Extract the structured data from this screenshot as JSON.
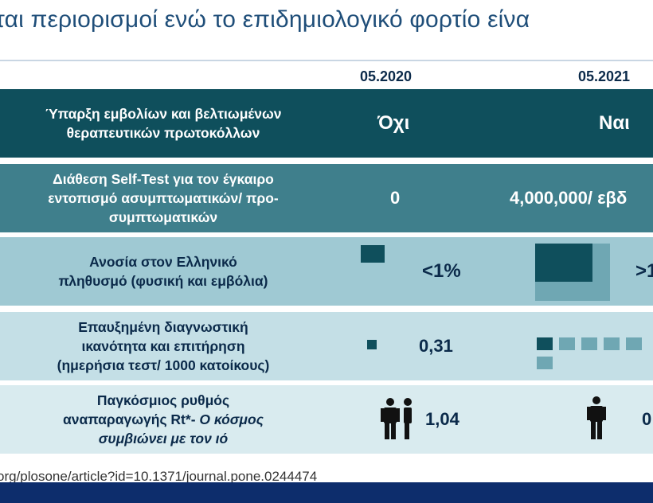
{
  "slide": {
    "title": "ται περιορισμοί ενώ το επιδημιολογικό φορτίο είνα",
    "source_url": "org/plosone/article?id=10.1371/journal.pone.0244474"
  },
  "table": {
    "columns": [
      "05.2020",
      "05.2021"
    ],
    "rows": [
      {
        "label_lines": [
          "Ύπαρξη εμβολίων και βελτιωμένων",
          "θεραπευτικών πρωτοκόλλων"
        ],
        "values": [
          "Όχι",
          "Ναι"
        ]
      },
      {
        "label_lines": [
          "Διάθεση Self-Test για τον έγκαιρο",
          "εντοπισμό ασυμπτωματικών/ προ-",
          "συμπτωματικών"
        ],
        "values": [
          "0",
          "4,000,000/ εβδ"
        ]
      },
      {
        "label_lines": [
          "Ανοσία στον Ελληνικό",
          "πληθυσμό (φυσική και εμβόλια)"
        ],
        "values": [
          "<1%",
          ">1"
        ]
      },
      {
        "label_lines": [
          "Επαυξημένη διαγνωστική",
          "ικανότητα και επιτήρηση",
          "(ημερήσια τεστ/ 1000 κατοίκους)"
        ],
        "values": [
          "0,31",
          ""
        ]
      },
      {
        "label_lines": [
          "Παγκόσμιος ρυθμός",
          "αναπαραγωγής Rt*-",
          "Ο κόσμος",
          "συμβιώνει με τον ιό"
        ],
        "values": [
          "1,04",
          "0"
        ]
      }
    ]
  },
  "colors": {
    "title": "#1f4e79",
    "row1_bg": "#0f4f5c",
    "row2_bg": "#3f7f8c",
    "row3_bg": "#9fc9d3",
    "row4_bg": "#c4dfe6",
    "row5_bg": "#d9ebef",
    "icon_dark": "#0f4f5c",
    "icon_light": "#6fa7b3",
    "footer_bar": "#0d2d6c"
  },
  "icons": [
    "small-square-icon",
    "immunity-square-icon",
    "test-squares-icon",
    "person-icon"
  ]
}
